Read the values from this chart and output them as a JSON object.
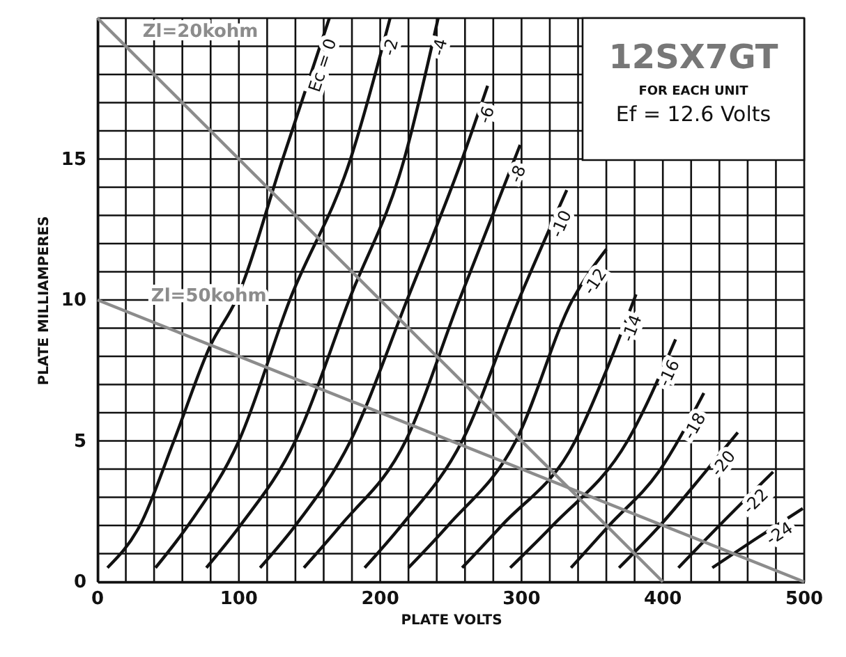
{
  "chart_data": {
    "type": "line",
    "title": "12SX7GT",
    "subtitle": "FOR EACH UNIT",
    "annotations": [
      "Ef = 12.6 Volts"
    ],
    "xlabel": "PLATE VOLTS",
    "ylabel": "PLATE MILLIAMPERES",
    "xlim": [
      0,
      500
    ],
    "ylim": [
      0,
      20
    ],
    "xticks": [
      0,
      {
        "value": 20,
        "label": null
      },
      {
        "value": 40,
        "label": null
      },
      {
        "value": 60,
        "label": null
      },
      {
        "value": 80,
        "label": null
      },
      100,
      {
        "value": 120,
        "label": null
      },
      {
        "value": 140,
        "label": null
      },
      {
        "value": 160,
        "label": null
      },
      {
        "value": 180,
        "label": null
      },
      200,
      {
        "value": 220,
        "label": null
      },
      {
        "value": 240,
        "label": null
      },
      {
        "value": 260,
        "label": null
      },
      {
        "value": 280,
        "label": null
      },
      300,
      {
        "value": 320,
        "label": null
      },
      {
        "value": 340,
        "label": null
      },
      {
        "value": 360,
        "label": null
      },
      {
        "value": 380,
        "label": null
      },
      400,
      {
        "value": 420,
        "label": null
      },
      {
        "value": 440,
        "label": null
      },
      {
        "value": 460,
        "label": null
      },
      {
        "value": 480,
        "label": null
      },
      500
    ],
    "yticks": [
      0,
      {
        "value": 1,
        "label": null
      },
      {
        "value": 2,
        "label": null
      },
      {
        "value": 3,
        "label": null
      },
      {
        "value": 4,
        "label": null
      },
      5,
      {
        "value": 6,
        "label": null
      },
      {
        "value": 7,
        "label": null
      },
      {
        "value": 8,
        "label": null
      },
      {
        "value": 9,
        "label": null
      },
      10,
      {
        "value": 11,
        "label": null
      },
      {
        "value": 12,
        "label": null
      },
      {
        "value": 13,
        "label": null
      },
      {
        "value": 14,
        "label": null
      },
      15,
      {
        "value": 16,
        "label": null
      },
      {
        "value": 17,
        "label": null
      },
      {
        "value": 18,
        "label": null
      },
      {
        "value": 19,
        "label": null
      },
      {
        "value": 20,
        "label": null
      }
    ],
    "grid": true,
    "marker": "none",
    "line_style": "solid",
    "series": [
      {
        "name": "Ec = 0",
        "color": "#111111",
        "x": [
          7,
          30,
          54,
          80,
          98,
          131,
          164
        ],
        "values": [
          0.5,
          2,
          5,
          8.4,
          10,
          15,
          20
        ]
      },
      {
        "name": "-2",
        "color": "#111111",
        "x": [
          41,
          64,
          100,
          136,
          179,
          207
        ],
        "values": [
          0.5,
          2,
          5,
          10,
          15,
          20
        ]
      },
      {
        "name": "-4",
        "color": "#111111",
        "x": [
          77,
          101,
          140,
          178,
          217,
          241
        ],
        "values": [
          0.5,
          2,
          5,
          10,
          15,
          20
        ]
      },
      {
        "name": "-6",
        "color": "#111111",
        "x": [
          115,
          140,
          179,
          219,
          258,
          276
        ],
        "values": [
          0.5,
          2,
          5,
          10,
          15,
          17.6
        ]
      },
      {
        "name": "-8",
        "color": "#111111",
        "x": [
          146,
          172,
          218,
          256,
          299
        ],
        "values": [
          0.5,
          2,
          5,
          10,
          15.5
        ]
      },
      {
        "name": "-10",
        "color": "#111111",
        "x": [
          189,
          215,
          258,
          298,
          332
        ],
        "values": [
          0.5,
          2,
          5,
          10,
          13.9
        ]
      },
      {
        "name": "-12",
        "color": "#111111",
        "x": [
          220,
          248,
          296,
          336,
          360
        ],
        "values": [
          0.5,
          2,
          5,
          10,
          11.8
        ]
      },
      {
        "name": "-14",
        "color": "#111111",
        "x": [
          258,
          286,
          338,
          360,
          381
        ],
        "values": [
          0.5,
          2,
          5,
          7.5,
          10.2
        ]
      },
      {
        "name": "-16",
        "color": "#111111",
        "x": [
          292,
          322,
          375,
          409
        ],
        "values": [
          0.5,
          2,
          5,
          8.6
        ]
      },
      {
        "name": "-18",
        "color": "#111111",
        "x": [
          335,
          362,
          397,
          429
        ],
        "values": [
          0.5,
          2,
          3.9,
          6.7
        ]
      },
      {
        "name": "-20",
        "color": "#111111",
        "x": [
          369,
          398,
          430,
          453
        ],
        "values": [
          0.5,
          2,
          3.9,
          5.3
        ]
      },
      {
        "name": "-22",
        "color": "#111111",
        "x": [
          411,
          440,
          478
        ],
        "values": [
          0.5,
          2,
          3.9
        ]
      },
      {
        "name": "-24",
        "color": "#111111",
        "x": [
          435,
          465,
          499
        ],
        "values": [
          0.5,
          1.5,
          2.6
        ]
      },
      {
        "name": "Zl=20kohm",
        "color": "#8c8c8c",
        "x": [
          0,
          400
        ],
        "values": [
          20,
          0
        ]
      },
      {
        "name": "Zl=50kohm",
        "color": "#8c8c8c",
        "x": [
          0,
          500
        ],
        "values": [
          10,
          0
        ]
      }
    ]
  }
}
